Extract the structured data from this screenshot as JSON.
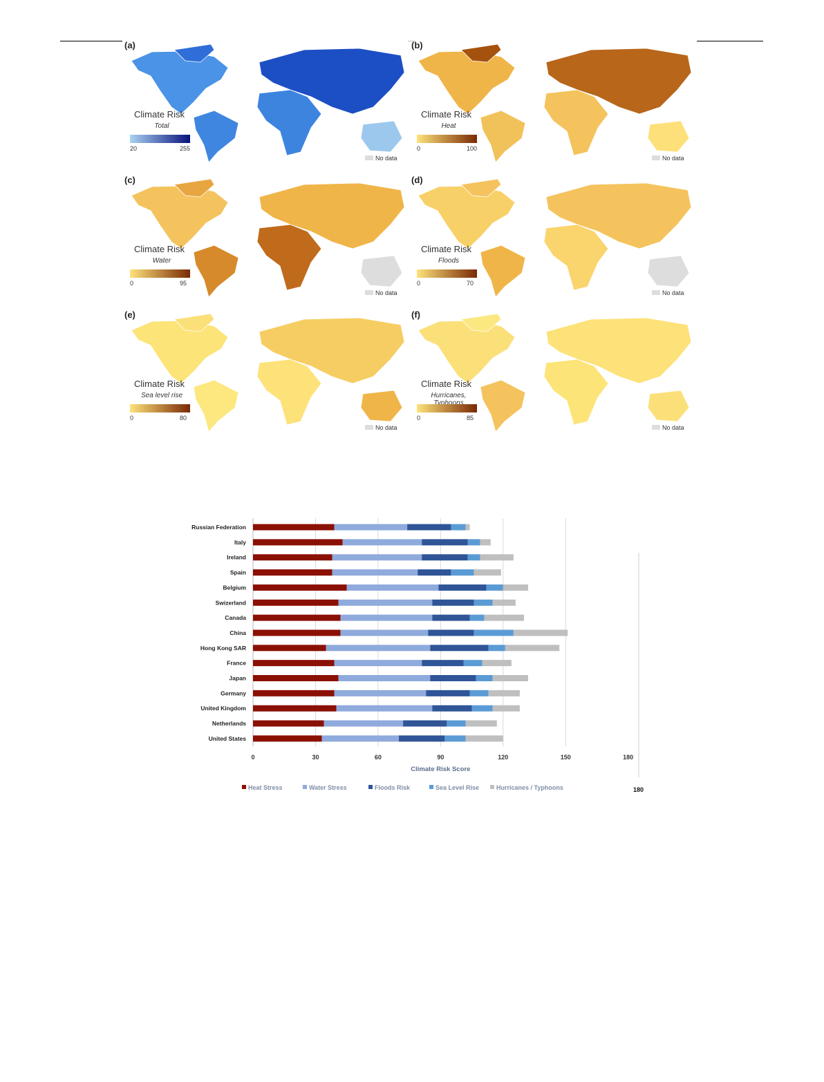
{
  "maps": [
    {
      "label": "(a)",
      "title": "Climate Risk",
      "subtitle": "Total",
      "min": "20",
      "max": "255",
      "nodata": "No data",
      "colors": [
        "#a9d2f2",
        "#08127d"
      ],
      "fills": [
        "#4a93e6",
        "#2f6ed8",
        "#3f86e0",
        "#1d4fc4",
        "#3d84df",
        "#9cc8ee"
      ]
    },
    {
      "label": "(b)",
      "title": "Climate Risk",
      "subtitle": "Heat",
      "min": "0",
      "max": "100",
      "nodata": "No data",
      "colors": [
        "#fde27a",
        "#7a2a05"
      ],
      "fills": [
        "#f0b548",
        "#a6520f",
        "#f2c25a",
        "#b8661a",
        "#f4c35d",
        "#fde07a"
      ]
    },
    {
      "label": "(c)",
      "title": "Climate Risk",
      "subtitle": "Water",
      "min": "0",
      "max": "95",
      "nodata": "No data",
      "colors": [
        "#fde27a",
        "#7a2a05"
      ],
      "fills": [
        "#f4c35d",
        "#e8a640",
        "#d68a2c",
        "#f0b548",
        "#c06a1c",
        "#dddddd"
      ]
    },
    {
      "label": "(d)",
      "title": "Climate Risk",
      "subtitle": "Floods",
      "min": "0",
      "max": "70",
      "nodata": "No data",
      "colors": [
        "#fde27a",
        "#7a2a05"
      ],
      "fills": [
        "#f8d068",
        "#f4c35d",
        "#f0b548",
        "#f4c35d",
        "#fad46c",
        "#dddddd"
      ]
    },
    {
      "label": "(e)",
      "title": "Climate Risk",
      "subtitle": "Sea level rise",
      "min": "0",
      "max": "80",
      "nodata": "No data",
      "colors": [
        "#fde27a",
        "#7a2a05"
      ],
      "fills": [
        "#fce478",
        "#fbe07a",
        "#fde880",
        "#f6cd62",
        "#fde27a",
        "#f0b548"
      ]
    },
    {
      "label": "(f)",
      "title": "Climate Risk",
      "subtitle": "Hurricanes, Typhoons",
      "min": "0",
      "max": "85",
      "nodata": "No data",
      "colors": [
        "#fde27a",
        "#7a2a05"
      ],
      "fills": [
        "#fbe07a",
        "#fce880",
        "#f4c35d",
        "#fde27a",
        "#fce478",
        "#fbe07a"
      ]
    }
  ],
  "chart_data": {
    "type": "bar",
    "orientation": "horizontal",
    "stacked": true,
    "xlabel": "Climate Risk Score",
    "xlim": [
      0,
      180
    ],
    "xticks": [
      0,
      30,
      60,
      90,
      120,
      150,
      180
    ],
    "stray_label": "180",
    "categories": [
      "Russian Federation",
      "Italy",
      "Ireland",
      "Spain",
      "Belgium",
      "Swizerland",
      "Canada",
      "China",
      "Hong Kong SAR",
      "France",
      "Japan",
      "Germany",
      "United Kingdom",
      "Netherlands",
      "United States"
    ],
    "series": [
      {
        "name": "Heat Stress",
        "color": "#8b1004",
        "values": [
          39,
          43,
          38,
          38,
          45,
          41,
          42,
          42,
          35,
          39,
          41,
          39,
          40,
          34,
          33
        ]
      },
      {
        "name": "Water Stress",
        "color": "#8faadc",
        "values": [
          35,
          38,
          43,
          41,
          44,
          45,
          44,
          42,
          50,
          42,
          44,
          44,
          46,
          38,
          37
        ]
      },
      {
        "name": "Floods Risk",
        "color": "#2f5597",
        "values": [
          21,
          22,
          22,
          16,
          23,
          20,
          18,
          22,
          28,
          20,
          22,
          21,
          19,
          21,
          22
        ]
      },
      {
        "name": "Sea Level Rise",
        "color": "#5b9bd5",
        "values": [
          7,
          6,
          6,
          11,
          8,
          9,
          7,
          19,
          8,
          9,
          8,
          9,
          10,
          9,
          10
        ]
      },
      {
        "name": "Hurricanes / Typhoons",
        "color": "#bfbfbf",
        "values": [
          2,
          5,
          16,
          13,
          12,
          11,
          19,
          26,
          26,
          14,
          17,
          15,
          13,
          15,
          18
        ]
      }
    ],
    "legend": "bottom"
  }
}
